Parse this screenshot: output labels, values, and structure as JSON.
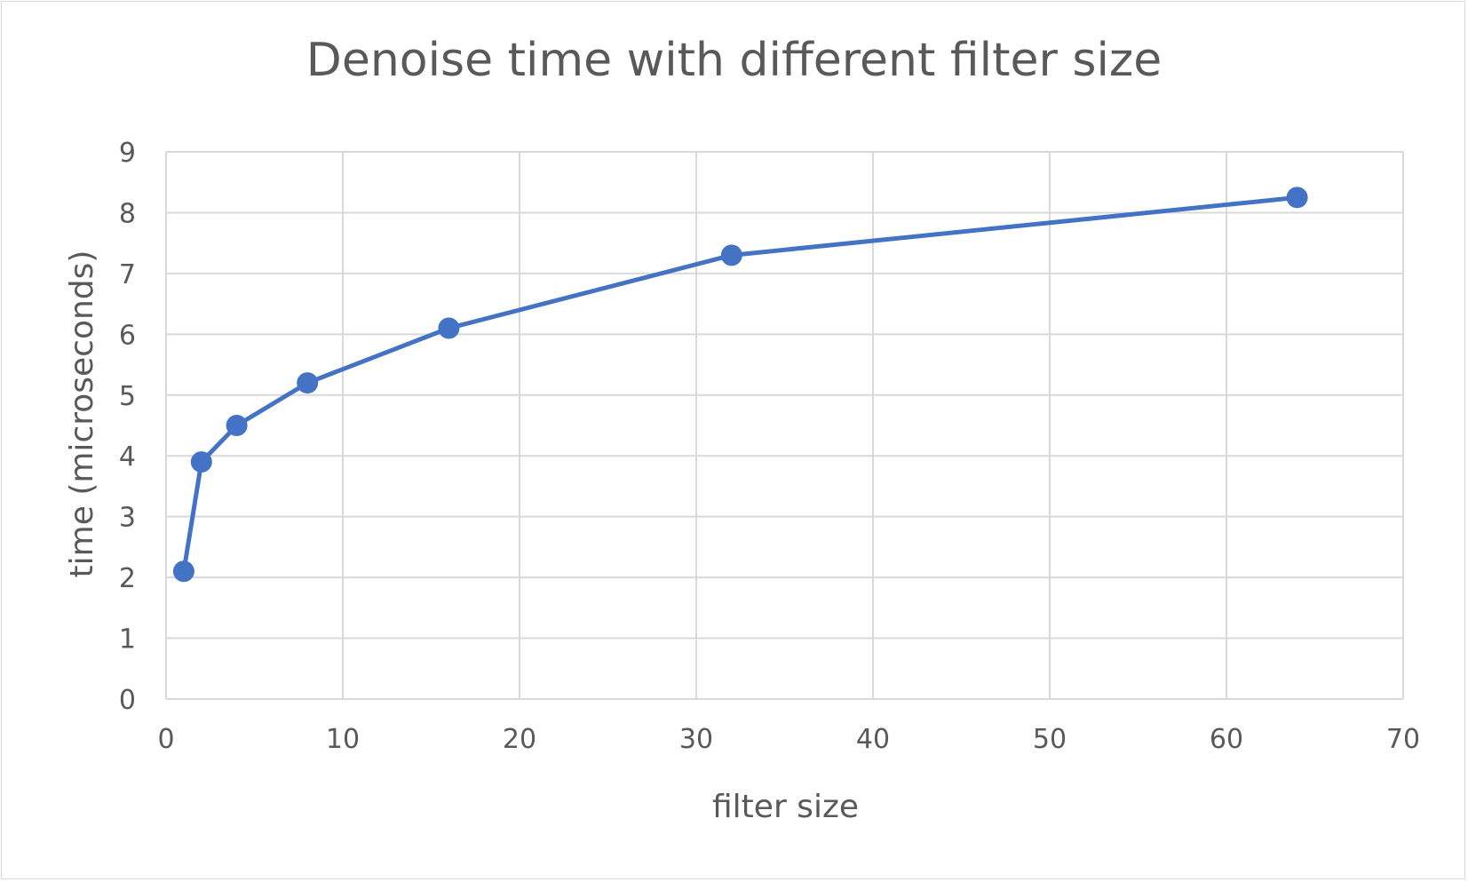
{
  "chart_data": {
    "type": "line",
    "title": "Denoise time with different filter size",
    "xlabel": "filter size",
    "ylabel": "time (microseconds)",
    "xlim": [
      0,
      70
    ],
    "ylim": [
      0,
      9
    ],
    "xticks": [
      0,
      10,
      20,
      30,
      40,
      50,
      60,
      70
    ],
    "yticks": [
      0,
      1,
      2,
      3,
      4,
      5,
      6,
      7,
      8,
      9
    ],
    "grid": true,
    "legend": "none",
    "series": [
      {
        "color": "#4472c4",
        "marker": "circle",
        "x": [
          1,
          2,
          4,
          8,
          16,
          32,
          64
        ],
        "y": [
          2.1,
          3.9,
          4.5,
          5.2,
          6.1,
          7.3,
          8.25
        ]
      }
    ]
  }
}
